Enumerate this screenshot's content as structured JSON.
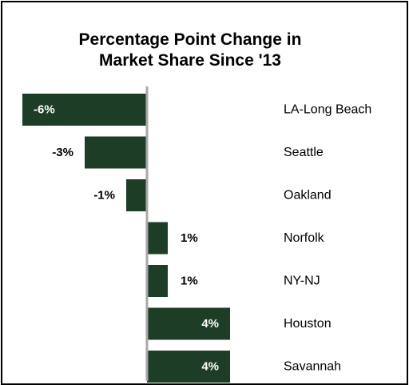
{
  "chart_data": {
    "type": "bar",
    "orientation": "horizontal",
    "title_lines": [
      "Percentage Point Change in",
      "Market Share Since '13"
    ],
    "categories": [
      "LA-Long Beach",
      "Seattle",
      "Oakland",
      "Norfolk",
      "NY-NJ",
      "Houston",
      "Savannah"
    ],
    "values": [
      -6,
      -3,
      -1,
      1,
      1,
      4,
      4
    ],
    "value_labels": [
      "-6%",
      "-3%",
      "-1%",
      "1%",
      "1%",
      "4%",
      "4%"
    ],
    "xlim": [
      -6,
      4
    ],
    "grid": false,
    "legend": "none",
    "bar_color": "#1e3d26",
    "axis_color": "#a8a8a8"
  }
}
